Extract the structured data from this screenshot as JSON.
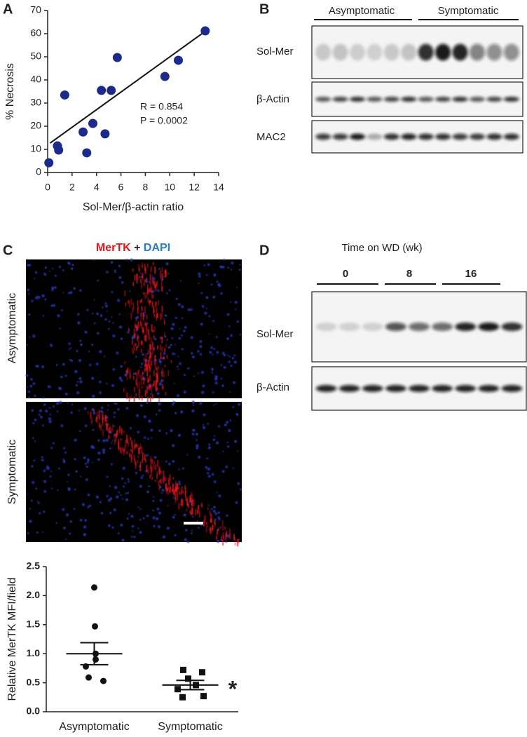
{
  "panel_labels": [
    "A",
    "B",
    "C",
    "D"
  ],
  "chart_data": [
    {
      "type": "scatter",
      "xlabel": "Sol-Mer/β-actin ratio",
      "ylabel": "% Necrosis",
      "x": [
        0.1,
        0.8,
        0.9,
        1.4,
        2.9,
        3.7,
        3.2,
        4.4,
        5.2,
        5.7,
        4.7,
        9.6,
        10.7,
        12.9
      ],
      "y": [
        4.2,
        11.5,
        9.7,
        33.5,
        17.5,
        21.2,
        8.5,
        35.5,
        35.5,
        49.7,
        16.7,
        41.5,
        48.5,
        61.2
      ],
      "color": "#1c2a8c",
      "fit": {
        "x": [
          0.2,
          12.9
        ],
        "y": [
          12.7,
          61
        ]
      },
      "annotations": [
        "R = 0.854",
        "P = 0.0002"
      ],
      "xlim": [
        0,
        14
      ],
      "xticks": [
        0,
        2,
        4,
        6,
        8,
        10,
        12,
        14
      ],
      "ylim": [
        0,
        70
      ],
      "yticks": [
        0,
        10,
        20,
        30,
        40,
        50,
        60,
        70
      ]
    },
    {
      "type": "dotplot",
      "ylabel": "Relative MerTK MFI/field",
      "categories": [
        "Asymptomatic",
        "Symptomatic"
      ],
      "values": [
        [
          2.14,
          1.47,
          1.0,
          0.9,
          0.78,
          0.59,
          0.53
        ],
        [
          0.72,
          0.68,
          0.57,
          0.46,
          0.39,
          0.27,
          0.25
        ]
      ],
      "markers": [
        "circle",
        "square"
      ],
      "mean": [
        1.0,
        0.46
      ],
      "sem": [
        0.19,
        0.08
      ],
      "annotations": [
        "*"
      ],
      "color": "#111111",
      "ylim": [
        0,
        2.5
      ],
      "yticks": [
        {
          "value": 0,
          "label": "0.0"
        },
        0.5,
        {
          "value": 1,
          "label": "1.0"
        },
        1.5,
        {
          "value": 2,
          "label": "2.0"
        },
        2.5
      ]
    }
  ],
  "blot_B": {
    "columns": [
      "Asymptomatic",
      "Symptomatic"
    ],
    "rows": [
      "Sol-Mer",
      "β-Actin",
      "MAC2"
    ]
  },
  "micrograph_C": {
    "title_parts": [
      "MerTK",
      "+",
      "DAPI"
    ],
    "rows": [
      "Asymptomatic",
      "Symptomatic"
    ]
  },
  "blot_D": {
    "title": "Time on WD (wk)",
    "columns": [
      "0",
      "8",
      "16"
    ],
    "rows": [
      "Sol-Mer",
      "β-Actin"
    ]
  }
}
